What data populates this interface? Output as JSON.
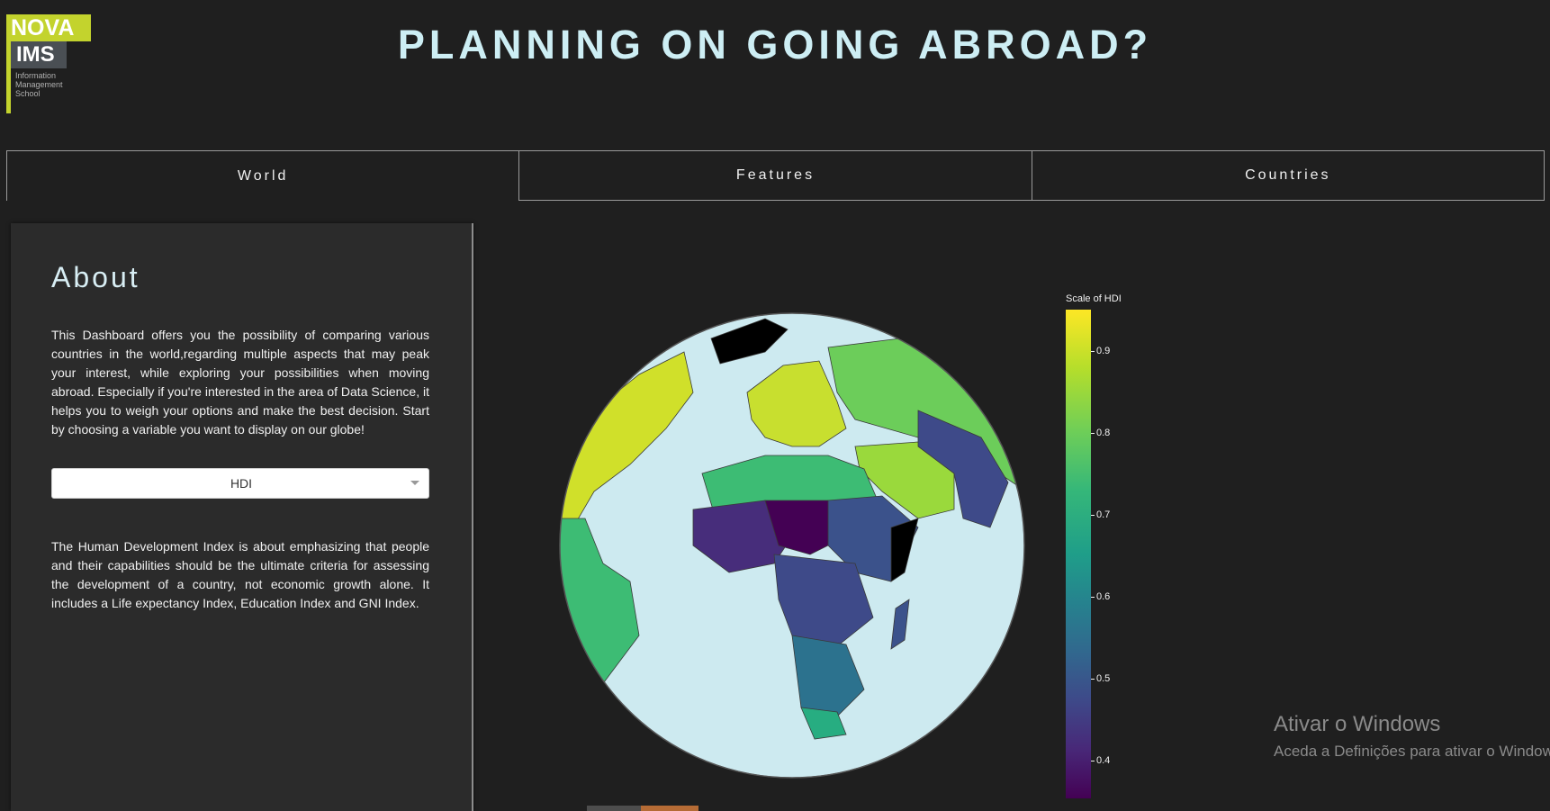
{
  "logo": {
    "line1": "NOVA",
    "line2": "IMS",
    "sub": [
      "Information",
      "Management",
      "School"
    ]
  },
  "header": {
    "title": "PLANNING ON GOING ABROAD?"
  },
  "tabs": [
    {
      "label": "World",
      "active": true
    },
    {
      "label": "Features",
      "active": false
    },
    {
      "label": "Countries",
      "active": false
    }
  ],
  "about": {
    "title": "About",
    "text": "This Dashboard offers you the possibility of comparing various countries in the world,regarding multiple aspects that may peak your interest, while exploring your possibilities when moving abroad. Especially if you're interested in the area of Data Science, it helps you to weigh your options and make the best decision. Start by choosing a variable you want to display on our globe!",
    "dropdown_value": "HDI",
    "description": "The Human Development Index is about emphasizing that people and their capabilities should be the ultimate criteria for assessing the development of a country, not economic growth alone. It includes a Life expectancy Index, Education Index and GNI Index."
  },
  "colorbar": {
    "title": "Scale of HDI",
    "ticks": [
      "0.9",
      "0.8",
      "0.7",
      "0.6",
      "0.5",
      "0.4"
    ]
  },
  "watermark": {
    "line1": "Ativar o Windows",
    "line2": "Aceda a Definições para ativar o Windows."
  }
}
